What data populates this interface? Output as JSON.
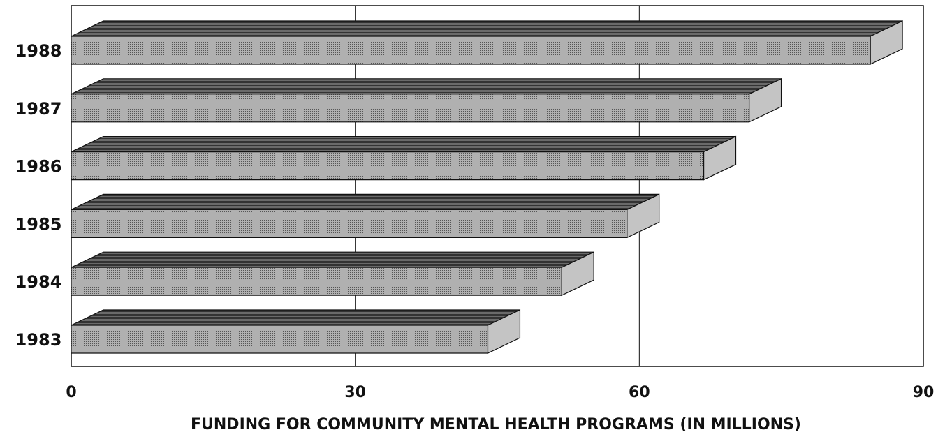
{
  "chart_data": {
    "type": "bar3d_horizontal",
    "xlabel": "FUNDING FOR COMMUNITY MENTAL HEALTH PROGRAMS (IN MILLIONS)",
    "categories": [
      "1983",
      "1984",
      "1985",
      "1986",
      "1987",
      "1988"
    ],
    "values": [
      44,
      51.8,
      58.7,
      66.8,
      71.6,
      84.4
    ],
    "color": "#9a9a9a",
    "xlim": [
      0,
      90
    ],
    "xticks": [
      0,
      30,
      60,
      90
    ],
    "grid": true
  }
}
